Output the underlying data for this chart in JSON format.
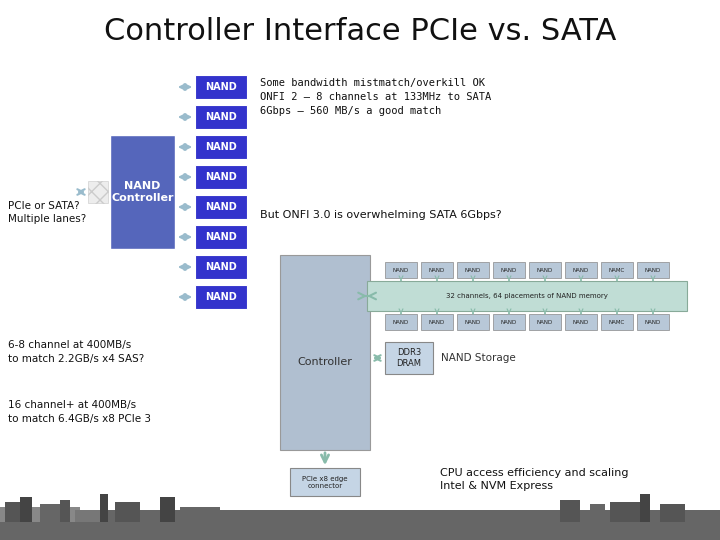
{
  "title": "Controller Interface PCIe vs. SATA",
  "title_fontsize": 22,
  "background_color": "#ffffff",
  "nand_color": "#3333cc",
  "nand_text_color": "#ffffff",
  "controller_color": "#5566bb",
  "controller_light_color": "#b0bfd0",
  "arrow_color": "#99bbcc",
  "text_color": "#111111",
  "nand_labels": [
    "NAND",
    "NAND",
    "NAND",
    "NAND",
    "NAND",
    "NAND",
    "NAND",
    "NAND"
  ],
  "top_right_text_line1": "Some bandwidth mistmatch/overkill OK",
  "top_right_text_line2": "ONFI 2 – 8 channels at 133MHz to SATA",
  "top_right_text_line3": "6Gbps – 560 MB/s a good match",
  "left_label1": "PCIe or SATA?",
  "left_label2": "Multiple lanes?",
  "bottom_left_text1a": "6-8 channel at 400MB/s",
  "bottom_left_text1b": "to match 2.2GB/s x4 SAS?",
  "bottom_left_text2a": "16 channel+ at 400MB/s",
  "bottom_left_text2b": "to match 6.4GB/s x8 PCIe 3",
  "mid_right_text": "But ONFI 3.0 is overwhelming SATA 6Gbps?",
  "bottom_right_text_line1": "CPU access efficiency and scaling",
  "bottom_right_text_line2": "Intel & NVM Express",
  "controller_label": "Controller",
  "ddr_label": "DDR3\nDRAM",
  "nand_storage_label": "NAND Storage",
  "pcie_connector_label": "PCIe x8 edge\nconnector",
  "channel_label": "32 channels, 64 placements of NAND memory",
  "nand_controller_label": "NAND\nController",
  "nand_mini_labels": [
    "NAND",
    "NAND",
    "NAND",
    "NAND",
    "NAND",
    "NAND",
    "NAMC",
    "NAND"
  ]
}
